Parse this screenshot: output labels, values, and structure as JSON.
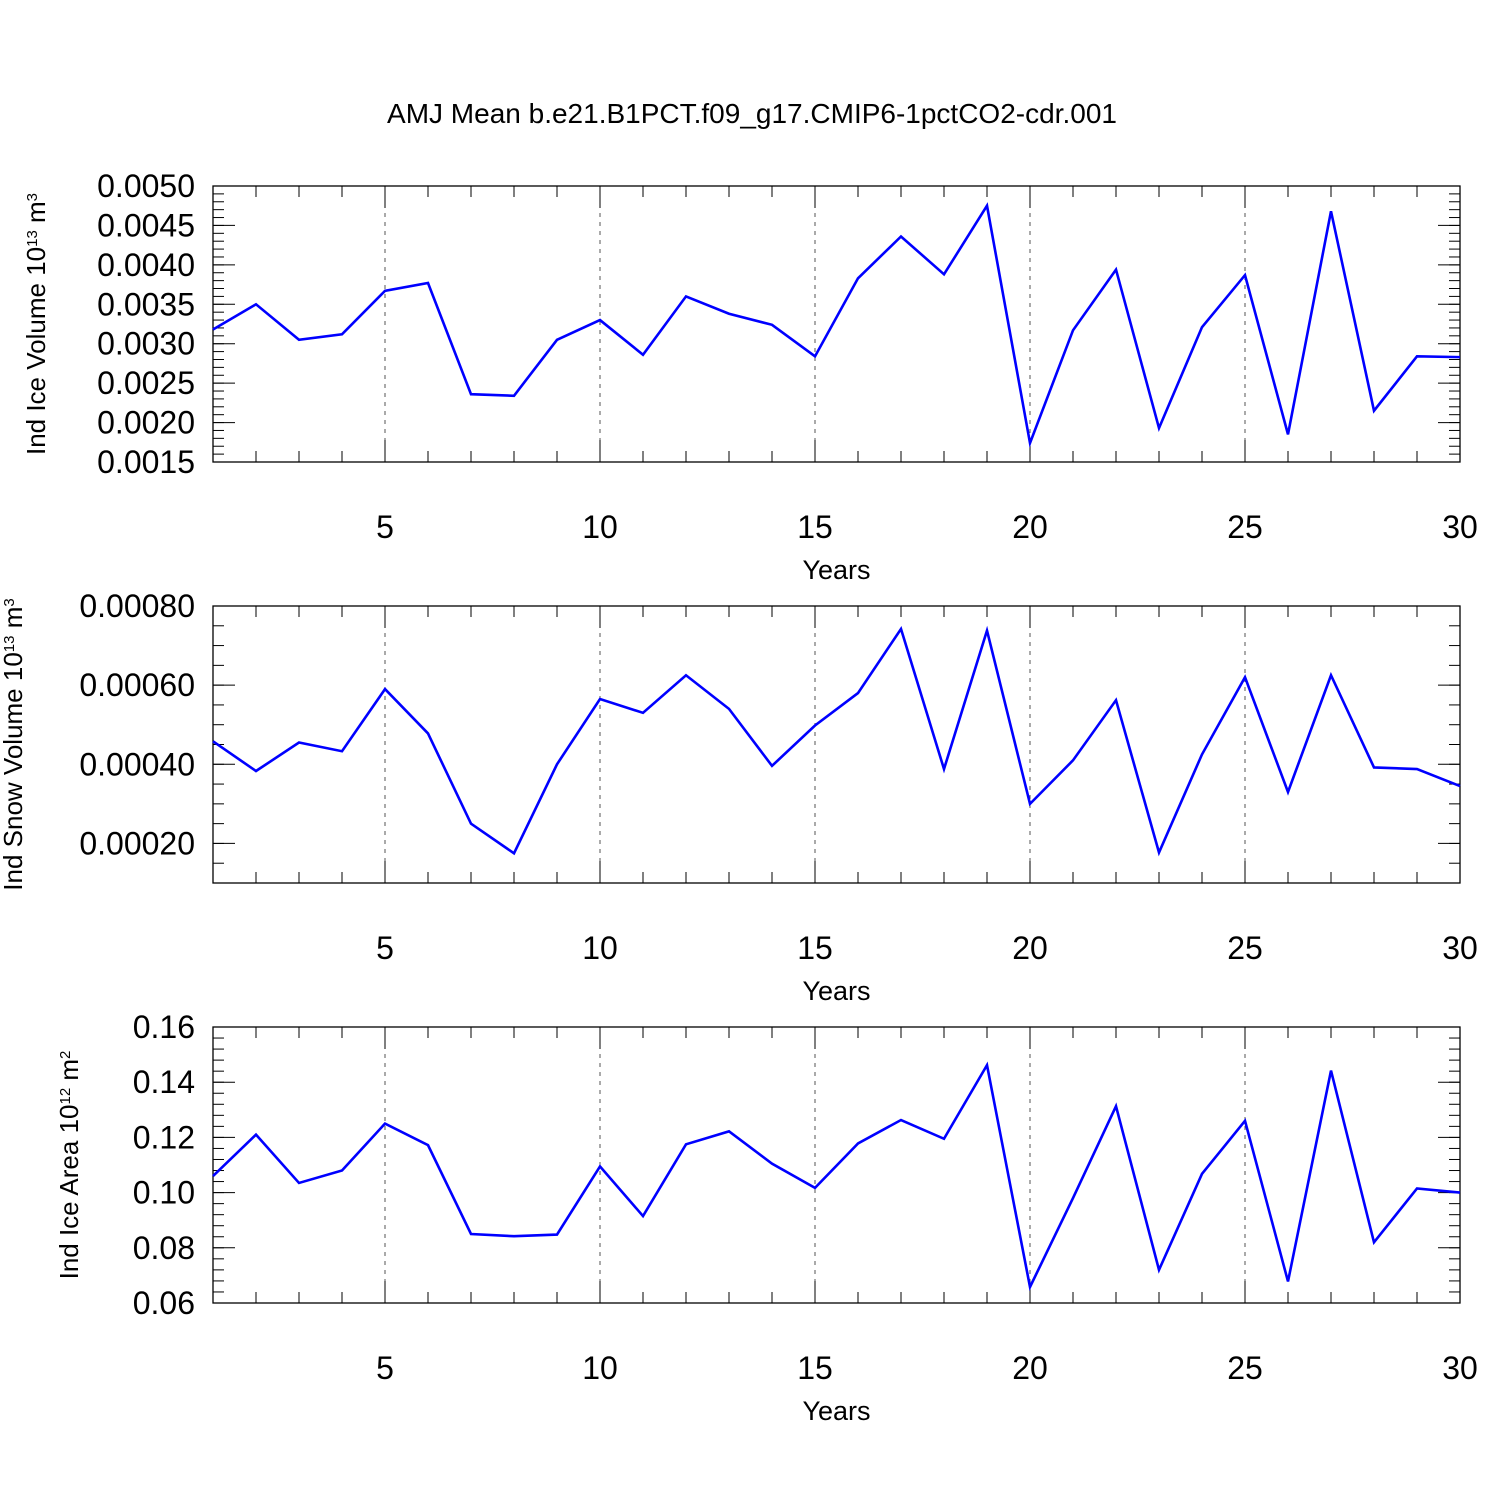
{
  "figure_title": "AMJ Mean b.e21.B1PCT.f09_g17.CMIP6-1pctCO2-cdr.001",
  "line_color": "#0000ff",
  "chart_data": [
    {
      "type": "line",
      "title": "",
      "xlabel": "Years",
      "ylabel": {
        "base": "Ind Ice Volume 10",
        "exp": "13",
        "unit": " m",
        "unit_exp": "3"
      },
      "xlim": [
        1,
        30
      ],
      "ylim": [
        0.0015,
        0.005
      ],
      "x_ticks": [
        5,
        10,
        15,
        20,
        25,
        30
      ],
      "x_tick_labels": [
        "5",
        "10",
        "15",
        "20",
        "25",
        "30"
      ],
      "y_ticks": [
        0.0015,
        0.002,
        0.0025,
        0.003,
        0.0035,
        0.004,
        0.0045,
        0.005
      ],
      "y_tick_labels": [
        "0.0015",
        "0.0020",
        "0.0025",
        "0.0030",
        "0.0035",
        "0.0040",
        "0.0045",
        "0.0050"
      ],
      "y_minor_step": 0.0001,
      "grid": "dashed vertical at major x ticks",
      "x": [
        1,
        2,
        3,
        4,
        5,
        6,
        7,
        8,
        9,
        10,
        11,
        12,
        13,
        14,
        15,
        16,
        17,
        18,
        19,
        20,
        21,
        22,
        23,
        24,
        25,
        26,
        27,
        28,
        29,
        30
      ],
      "series": [
        {
          "values": [
            0.00318,
            0.0035,
            0.00305,
            0.00312,
            0.00367,
            0.00377,
            0.00236,
            0.00234,
            0.00305,
            0.0033,
            0.00286,
            0.0036,
            0.00338,
            0.00324,
            0.00284,
            0.00383,
            0.00436,
            0.00388,
            0.00475,
            0.00174,
            0.00317,
            0.00394,
            0.00193,
            0.00321,
            0.00387,
            0.00185,
            0.00468,
            0.00215,
            0.00284,
            0.00283
          ]
        }
      ]
    },
    {
      "type": "line",
      "title": "",
      "xlabel": "Years",
      "ylabel": {
        "base": "Ind Snow Volume 10",
        "exp": "13",
        "unit": " m",
        "unit_exp": "3"
      },
      "xlim": [
        1,
        30
      ],
      "ylim": [
        0.0001,
        0.0008
      ],
      "x_ticks": [
        5,
        10,
        15,
        20,
        25,
        30
      ],
      "x_tick_labels": [
        "5",
        "10",
        "15",
        "20",
        "25",
        "30"
      ],
      "y_ticks": [
        0.0002,
        0.0004,
        0.0006,
        0.0008
      ],
      "y_tick_labels": [
        "0.00020",
        "0.00040",
        "0.00060",
        "0.00080"
      ],
      "y_minor_step": 5e-05,
      "grid": "dashed vertical at major x ticks",
      "x": [
        1,
        2,
        3,
        4,
        5,
        6,
        7,
        8,
        9,
        10,
        11,
        12,
        13,
        14,
        15,
        16,
        17,
        18,
        19,
        20,
        21,
        22,
        23,
        24,
        25,
        26,
        27,
        28,
        29,
        30
      ],
      "series": [
        {
          "values": [
            0.000458,
            0.000383,
            0.000455,
            0.000433,
            0.00059,
            0.000478,
            0.00025,
            0.000175,
            0.0004,
            0.000565,
            0.00053,
            0.000625,
            0.00054,
            0.000396,
            0.000498,
            0.00058,
            0.000742,
            0.000388,
            0.000738,
            0.0003,
            0.00041,
            0.000562,
            0.000177,
            0.000425,
            0.00062,
            0.00033,
            0.000625,
            0.000392,
            0.000388,
            0.000345
          ]
        }
      ]
    },
    {
      "type": "line",
      "title": "",
      "xlabel": "Years",
      "ylabel": {
        "base": "Ind Ice Area 10",
        "exp": "12",
        "unit": " m",
        "unit_exp": "2"
      },
      "xlim": [
        1,
        30
      ],
      "ylim": [
        0.06,
        0.16
      ],
      "x_ticks": [
        5,
        10,
        15,
        20,
        25,
        30
      ],
      "x_tick_labels": [
        "5",
        "10",
        "15",
        "20",
        "25",
        "30"
      ],
      "y_ticks": [
        0.06,
        0.08,
        0.1,
        0.12,
        0.14,
        0.16
      ],
      "y_tick_labels": [
        "0.06",
        "0.08",
        "0.10",
        "0.12",
        "0.14",
        "0.16"
      ],
      "y_minor_step": 0.004,
      "grid": "dashed vertical at major x ticks",
      "x": [
        1,
        2,
        3,
        4,
        5,
        6,
        7,
        8,
        9,
        10,
        11,
        12,
        13,
        14,
        15,
        16,
        17,
        18,
        19,
        20,
        21,
        22,
        23,
        24,
        25,
        26,
        27,
        28,
        29,
        30
      ],
      "series": [
        {
          "values": [
            0.106,
            0.121,
            0.1035,
            0.108,
            0.125,
            0.1172,
            0.085,
            0.0842,
            0.0848,
            0.1095,
            0.0915,
            0.1175,
            0.1222,
            0.1105,
            0.1017,
            0.1178,
            0.1263,
            0.1195,
            0.1462,
            0.0658,
            0.098,
            0.1313,
            0.072,
            0.1068,
            0.126,
            0.0678,
            0.1442,
            0.082,
            0.1015,
            0.1
          ]
        }
      ]
    }
  ]
}
